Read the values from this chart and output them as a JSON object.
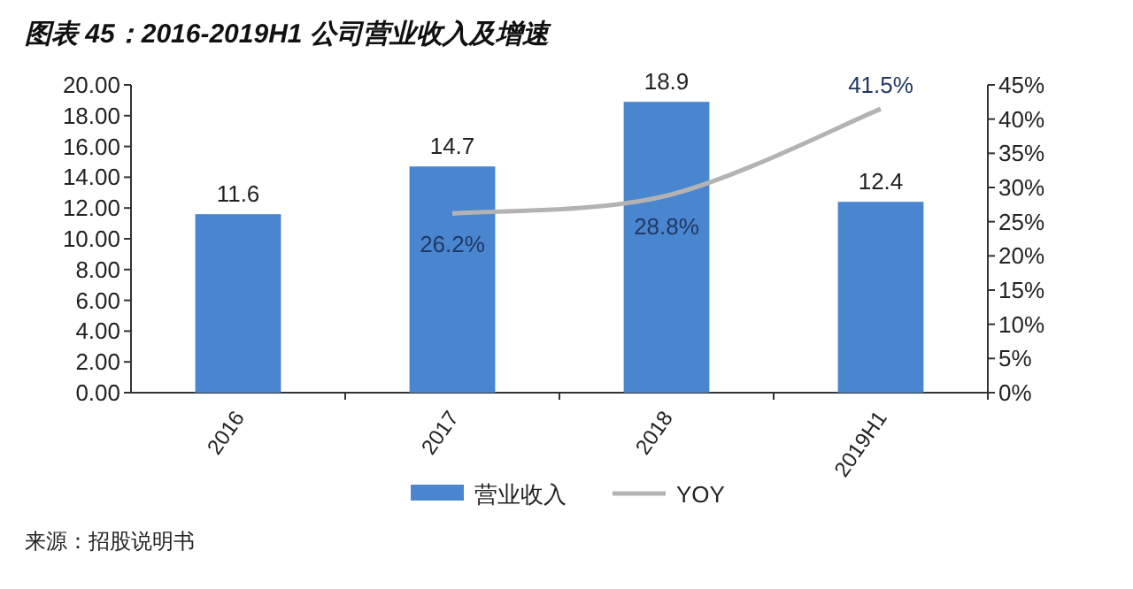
{
  "chart_data": {
    "type": "bar",
    "title": "图表 45：2016-2019H1 公司营业收入及增速",
    "categories": [
      "2016",
      "2017",
      "2018",
      "2019H1"
    ],
    "series": [
      {
        "name": "营业收入",
        "color": "#4a86cf",
        "values": [
          11.6,
          14.7,
          18.9,
          12.4
        ]
      },
      {
        "name": "YOY",
        "type": "line",
        "axis": "y2",
        "color": "#b3b3b3",
        "values": [
          null,
          26.2,
          28.8,
          41.5
        ],
        "value_labels": [
          null,
          "26.2%",
          "28.8%",
          "41.5%"
        ]
      }
    ],
    "ylim": [
      0,
      20
    ],
    "yticks": [
      {
        "value": 0,
        "label": "0.00"
      },
      {
        "value": 2,
        "label": "2.00"
      },
      {
        "value": 4,
        "label": "4.00"
      },
      {
        "value": 6,
        "label": "6.00"
      },
      {
        "value": 8,
        "label": "8.00"
      },
      {
        "value": 10,
        "label": "10.00"
      },
      {
        "value": 12,
        "label": "12.00"
      },
      {
        "value": 14,
        "label": "14.00"
      },
      {
        "value": 16,
        "label": "16.00"
      },
      {
        "value": 18,
        "label": "18.00"
      },
      {
        "value": 20,
        "label": "20.00"
      }
    ],
    "y2lim": [
      0,
      45
    ],
    "y2ticks": [
      {
        "value": 0,
        "label": "0%"
      },
      {
        "value": 5,
        "label": "5%"
      },
      {
        "value": 10,
        "label": "10%"
      },
      {
        "value": 15,
        "label": "15%"
      },
      {
        "value": 20,
        "label": "20%"
      },
      {
        "value": 25,
        "label": "25%"
      },
      {
        "value": 30,
        "label": "30%"
      },
      {
        "value": 35,
        "label": "35%"
      },
      {
        "value": 40,
        "label": "40%"
      },
      {
        "value": 45,
        "label": "45%"
      }
    ],
    "data_labels": true,
    "legend": "bottom",
    "grid": false,
    "annotations": [
      "来源：招股说明书"
    ]
  }
}
